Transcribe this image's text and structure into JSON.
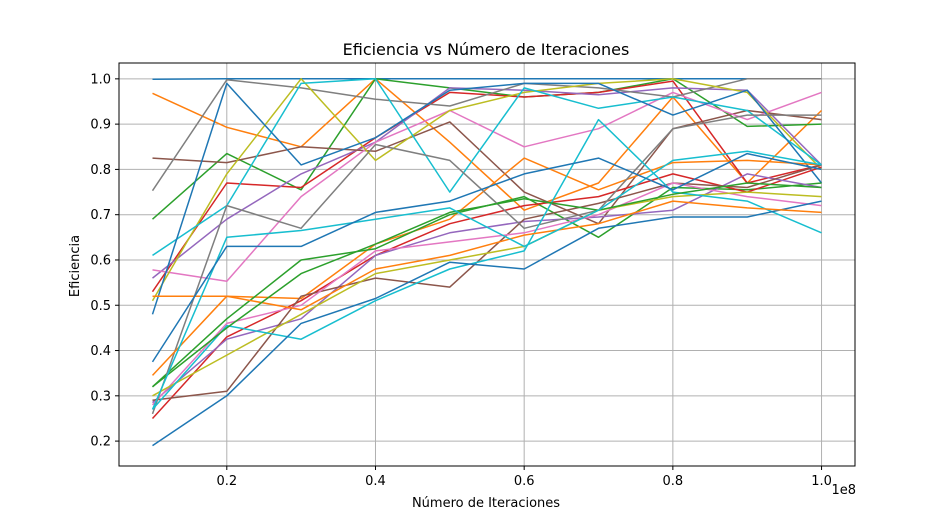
{
  "chart_data": {
    "type": "line",
    "title": "Eficiencia vs Número de Iteraciones",
    "xlabel": "Número de Iteraciones",
    "ylabel": "Eficiencia",
    "x_offset_label": "1e8",
    "x_scale": 100000000,
    "xlim": [
      5500000,
      104500000
    ],
    "ylim": [
      0.145,
      1.035
    ],
    "grid": true,
    "legend": "none",
    "x_ticks": [
      20000000,
      40000000,
      60000000,
      80000000,
      100000000
    ],
    "x_tick_labels": [
      "0.2",
      "0.4",
      "0.6",
      "0.8",
      "1.0"
    ],
    "y_ticks": [
      0.2,
      0.3,
      0.4,
      0.5,
      0.6,
      0.7,
      0.8,
      0.9,
      1.0
    ],
    "y_tick_labels": [
      "0.2",
      "0.3",
      "0.4",
      "0.5",
      "0.6",
      "0.7",
      "0.8",
      "0.9",
      "1.0"
    ],
    "x": [
      10000000,
      20000000,
      30000000,
      40000000,
      50000000,
      60000000,
      70000000,
      80000000,
      90000000,
      100000000
    ],
    "series": [
      {
        "color": "#1f77b4",
        "values": [
          0.999,
          1.0,
          1.0,
          1.0,
          1.0,
          1.0,
          1.0,
          1.0,
          1.0,
          1.0
        ]
      },
      {
        "color": "#ff7f0e",
        "values": [
          0.968,
          0.893,
          0.85,
          1.0,
          0.86,
          0.71,
          0.77,
          0.96,
          0.77,
          0.93
        ]
      },
      {
        "color": "#2ca02c",
        "values": [
          0.69,
          0.835,
          0.755,
          1.0,
          0.98,
          0.96,
          0.97,
          1.0,
          0.895,
          0.9
        ]
      },
      {
        "color": "#d62728",
        "values": [
          0.53,
          0.77,
          0.76,
          0.87,
          0.97,
          0.96,
          0.97,
          0.995,
          0.77,
          0.81
        ]
      },
      {
        "color": "#9467bd",
        "values": [
          0.56,
          0.69,
          0.79,
          0.86,
          0.98,
          0.975,
          0.965,
          0.98,
          0.975,
          0.81
        ]
      },
      {
        "color": "#8c564b",
        "values": [
          0.825,
          0.815,
          0.85,
          0.84,
          0.905,
          0.75,
          0.68,
          0.89,
          0.93,
          0.91
        ]
      },
      {
        "color": "#e377c2",
        "values": [
          0.578,
          0.553,
          0.74,
          0.86,
          0.93,
          0.85,
          0.89,
          0.97,
          0.91,
          0.97
        ]
      },
      {
        "color": "#7f7f7f",
        "values": [
          0.753,
          0.998,
          0.98,
          0.955,
          0.94,
          0.99,
          0.98,
          0.96,
          1.0,
          1.0
        ]
      },
      {
        "color": "#bcbd22",
        "values": [
          0.51,
          0.79,
          1.0,
          0.82,
          0.93,
          0.97,
          0.99,
          1.0,
          0.97,
          0.8
        ]
      },
      {
        "color": "#17becf",
        "values": [
          0.61,
          0.72,
          0.99,
          1.0,
          0.75,
          0.98,
          0.935,
          0.96,
          0.93,
          0.81
        ]
      },
      {
        "color": "#1f77b4",
        "values": [
          0.48,
          0.99,
          0.81,
          0.87,
          0.975,
          0.99,
          0.99,
          0.92,
          0.975,
          0.77
        ]
      },
      {
        "color": "#ff7f0e",
        "values": [
          0.52,
          0.52,
          0.515,
          0.635,
          0.69,
          0.825,
          0.755,
          0.815,
          0.82,
          0.81
        ]
      },
      {
        "color": "#2ca02c",
        "values": [
          0.32,
          0.47,
          0.6,
          0.625,
          0.7,
          0.74,
          0.65,
          0.76,
          0.755,
          0.77
        ]
      },
      {
        "color": "#d62728",
        "values": [
          0.25,
          0.43,
          0.51,
          0.61,
          0.68,
          0.72,
          0.74,
          0.79,
          0.75,
          0.805
        ]
      },
      {
        "color": "#9467bd",
        "values": [
          0.285,
          0.425,
          0.47,
          0.61,
          0.66,
          0.685,
          0.695,
          0.71,
          0.79,
          0.76
        ]
      },
      {
        "color": "#8c564b",
        "values": [
          0.29,
          0.31,
          0.52,
          0.56,
          0.54,
          0.69,
          0.725,
          0.77,
          0.76,
          0.81
        ]
      },
      {
        "color": "#e377c2",
        "values": [
          0.28,
          0.46,
          0.5,
          0.62,
          0.64,
          0.66,
          0.7,
          0.77,
          0.74,
          0.72
        ]
      },
      {
        "color": "#7f7f7f",
        "values": [
          0.26,
          0.72,
          0.67,
          0.855,
          0.82,
          0.67,
          0.71,
          0.89,
          0.92,
          0.92
        ]
      },
      {
        "color": "#bcbd22",
        "values": [
          0.3,
          0.39,
          0.48,
          0.57,
          0.6,
          0.63,
          0.71,
          0.74,
          0.75,
          0.74
        ]
      },
      {
        "color": "#17becf",
        "values": [
          0.27,
          0.455,
          0.425,
          0.51,
          0.58,
          0.62,
          0.91,
          0.75,
          0.73,
          0.66
        ]
      },
      {
        "color": "#1f77b4",
        "values": [
          0.19,
          0.3,
          0.46,
          0.515,
          0.595,
          0.58,
          0.67,
          0.695,
          0.695,
          0.73
        ]
      },
      {
        "color": "#ff7f0e",
        "values": [
          0.345,
          0.52,
          0.49,
          0.58,
          0.61,
          0.655,
          0.68,
          0.73,
          0.715,
          0.705
        ]
      },
      {
        "color": "#2ca02c",
        "values": [
          0.32,
          0.45,
          0.57,
          0.635,
          0.705,
          0.735,
          0.71,
          0.745,
          0.77,
          0.76
        ]
      },
      {
        "color": "#17becf",
        "values": [
          0.27,
          0.65,
          0.665,
          0.69,
          0.715,
          0.63,
          0.71,
          0.82,
          0.84,
          0.81
        ]
      },
      {
        "color": "#1f77b4",
        "values": [
          0.375,
          0.63,
          0.63,
          0.705,
          0.73,
          0.79,
          0.825,
          0.755,
          0.835,
          0.8
        ]
      }
    ]
  }
}
